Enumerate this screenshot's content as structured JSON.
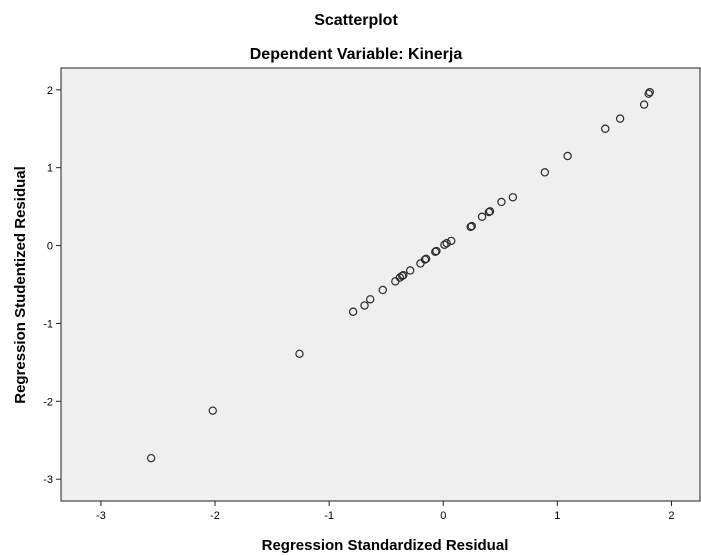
{
  "chart_data": {
    "type": "scatter",
    "title": "Scatterplot",
    "subtitle": "Dependent Variable: Kinerja",
    "xlabel": "Regression Standardized Residual",
    "ylabel": "Regression Studentized Residual",
    "xlim": [
      -3.35,
      2.25
    ],
    "ylim": [
      -3.28,
      2.28
    ],
    "xticks": [
      {
        "value": -3,
        "label": "-3"
      },
      {
        "value": -2,
        "label": "-2"
      },
      {
        "value": -1,
        "label": "-1"
      },
      {
        "value": 0,
        "label": "0"
      },
      {
        "value": 1,
        "label": "1"
      },
      {
        "value": 2,
        "label": "2"
      }
    ],
    "yticks": [
      {
        "value": 2,
        "label": "2"
      },
      {
        "value": 1,
        "label": "1"
      },
      {
        "value": 0,
        "label": "0"
      },
      {
        "value": -1,
        "label": "-1"
      },
      {
        "value": -2,
        "label": "-2"
      },
      {
        "value": -3,
        "label": "-3"
      }
    ],
    "grid": false,
    "legend": "none",
    "colors": {
      "plot_background": "#efefef",
      "marker_stroke": "#2a2a2a",
      "axis": "#222222"
    },
    "points": [
      {
        "x": -2.56,
        "y": -2.73
      },
      {
        "x": -2.02,
        "y": -2.12
      },
      {
        "x": -1.26,
        "y": -1.39
      },
      {
        "x": -0.79,
        "y": -0.85
      },
      {
        "x": -0.69,
        "y": -0.77
      },
      {
        "x": -0.64,
        "y": -0.69
      },
      {
        "x": -0.53,
        "y": -0.57
      },
      {
        "x": -0.42,
        "y": -0.46
      },
      {
        "x": -0.38,
        "y": -0.41
      },
      {
        "x": -0.36,
        "y": -0.39
      },
      {
        "x": -0.35,
        "y": -0.38
      },
      {
        "x": -0.29,
        "y": -0.32
      },
      {
        "x": -0.2,
        "y": -0.23
      },
      {
        "x": -0.16,
        "y": -0.18
      },
      {
        "x": -0.15,
        "y": -0.17
      },
      {
        "x": -0.07,
        "y": -0.08
      },
      {
        "x": -0.06,
        "y": -0.07
      },
      {
        "x": 0.01,
        "y": 0.01
      },
      {
        "x": 0.03,
        "y": 0.03
      },
      {
        "x": 0.07,
        "y": 0.06
      },
      {
        "x": 0.24,
        "y": 0.24
      },
      {
        "x": 0.25,
        "y": 0.25
      },
      {
        "x": 0.34,
        "y": 0.37
      },
      {
        "x": 0.4,
        "y": 0.43
      },
      {
        "x": 0.41,
        "y": 0.44
      },
      {
        "x": 0.51,
        "y": 0.56
      },
      {
        "x": 0.61,
        "y": 0.62
      },
      {
        "x": 0.89,
        "y": 0.94
      },
      {
        "x": 1.09,
        "y": 1.15
      },
      {
        "x": 1.42,
        "y": 1.5
      },
      {
        "x": 1.55,
        "y": 1.63
      },
      {
        "x": 1.76,
        "y": 1.81
      },
      {
        "x": 1.8,
        "y": 1.95
      },
      {
        "x": 1.81,
        "y": 1.97
      }
    ]
  }
}
